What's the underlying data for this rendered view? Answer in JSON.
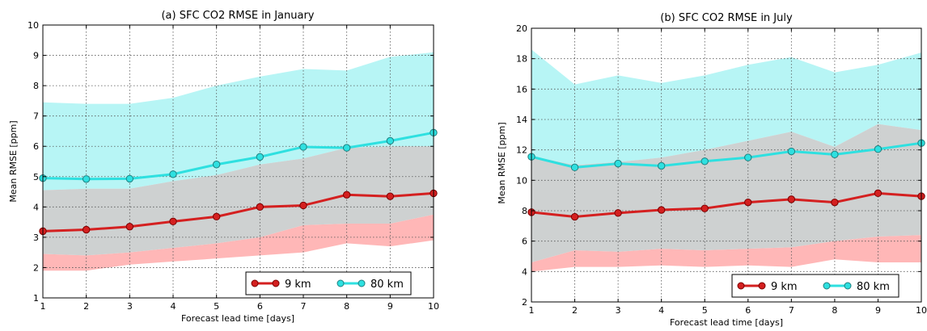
{
  "chart_data": [
    {
      "type": "line",
      "title": "(a) SFC CO2 RMSE in January",
      "xlabel": "Forecast lead time [days]",
      "ylabel": "Mean RMSE [ppm]",
      "xlim": [
        1,
        10
      ],
      "ylim": [
        1,
        10
      ],
      "x_ticks": [
        "1",
        "2",
        "3",
        "4",
        "5",
        "6",
        "7",
        "8",
        "9",
        "10"
      ],
      "y_ticks": [
        "1",
        "2",
        "3",
        "4",
        "5",
        "6",
        "7",
        "8",
        "9",
        "10"
      ],
      "grid": true,
      "legend_position": "bottom-right",
      "x": [
        1,
        2,
        3,
        4,
        5,
        6,
        7,
        8,
        9,
        10
      ],
      "series": [
        {
          "name": "9 km",
          "color": "#d42020",
          "values": [
            3.2,
            3.25,
            3.35,
            3.52,
            3.68,
            4.0,
            4.05,
            4.4,
            4.35,
            4.45
          ],
          "band_low": [
            1.9,
            1.9,
            2.1,
            2.2,
            2.3,
            2.4,
            2.5,
            2.8,
            2.7,
            2.9
          ],
          "band_high": [
            2.45,
            2.4,
            2.5,
            2.65,
            2.8,
            3.0,
            3.4,
            3.45,
            3.45,
            3.75
          ],
          "band_color": "#ffaaaa"
        },
        {
          "name": "80 km",
          "color": "#2ee0e0",
          "values": [
            4.95,
            4.92,
            4.93,
            5.08,
            5.4,
            5.65,
            5.98,
            5.95,
            6.18,
            6.45
          ],
          "band_low": [
            4.55,
            4.6,
            4.6,
            4.85,
            5.05,
            5.4,
            5.6,
            5.95,
            6.0,
            6.0
          ],
          "band_high": [
            7.45,
            7.4,
            7.4,
            7.6,
            8.0,
            8.3,
            8.55,
            8.5,
            8.95,
            9.1
          ],
          "band_color": "#aaf3f3"
        }
      ]
    },
    {
      "type": "line",
      "title": "(b) SFC CO2 RMSE in July",
      "xlabel": "Forecast lead time [days]",
      "ylabel": "Mean RMSE [ppm]",
      "xlim": [
        1,
        10
      ],
      "ylim": [
        2,
        20
      ],
      "x_ticks": [
        "1",
        "2",
        "3",
        "4",
        "5",
        "6",
        "7",
        "8",
        "9",
        "10"
      ],
      "y_ticks": [
        "2",
        "4",
        "6",
        "8",
        "10",
        "12",
        "14",
        "16",
        "18",
        "20"
      ],
      "grid": true,
      "legend_position": "bottom-right",
      "x": [
        1,
        2,
        3,
        4,
        5,
        6,
        7,
        8,
        9,
        10
      ],
      "series": [
        {
          "name": "9 km",
          "color": "#d42020",
          "values": [
            7.9,
            7.6,
            7.85,
            8.05,
            8.15,
            8.55,
            8.75,
            8.55,
            9.15,
            8.95
          ],
          "band_low": [
            4.0,
            4.3,
            4.3,
            4.4,
            4.3,
            4.4,
            4.3,
            4.8,
            4.6,
            4.6
          ],
          "band_high": [
            4.6,
            5.4,
            5.3,
            5.5,
            5.4,
            5.5,
            5.6,
            6.0,
            6.3,
            6.4
          ],
          "band_color": "#ffaaaa"
        },
        {
          "name": "80 km",
          "color": "#2ee0e0",
          "values": [
            11.55,
            10.85,
            11.1,
            10.95,
            11.25,
            11.5,
            11.9,
            11.7,
            12.05,
            12.45
          ],
          "band_low": [
            11.6,
            11.0,
            11.2,
            11.5,
            12.0,
            12.6,
            13.2,
            12.2,
            13.7,
            13.3
          ],
          "band_high": [
            18.6,
            16.3,
            16.9,
            16.4,
            16.9,
            17.6,
            18.1,
            17.1,
            17.6,
            18.4
          ],
          "band_color": "#aaf3f3"
        }
      ]
    }
  ]
}
